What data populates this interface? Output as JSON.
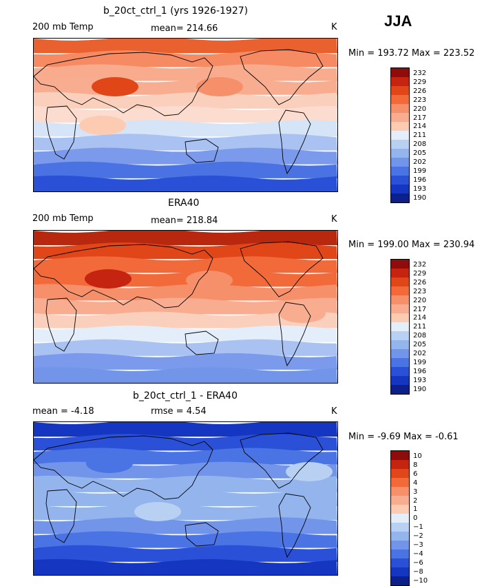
{
  "season": "JJA",
  "panels": [
    {
      "title": "b_20ct_ctrl_1 (yrs 1926-1927)",
      "left": "200 mb Temp",
      "center": "mean= 214.66",
      "units": "K",
      "minmax": "Min = 193.72 Max = 223.52",
      "levels": [
        "232",
        "229",
        "226",
        "223",
        "220",
        "217",
        "214",
        "211",
        "208",
        "205",
        "202",
        "199",
        "196",
        "193",
        "190"
      ],
      "colors": [
        "#8e0c0c",
        "#c42410",
        "#e14618",
        "#f26a3a",
        "#f6906a",
        "#f8ad90",
        "#fccbb2",
        "#e4eefa",
        "#b8d0f2",
        "#94b4ee",
        "#7295ea",
        "#4a73e4",
        "#2a50d8",
        "#1536c0",
        "#0c1f8a"
      ],
      "field": {
        "bands": [
          "#e9612f",
          "#f58a63",
          "#f8ab8d",
          "#f8ad90",
          "#fad0bd",
          "#fbdccf",
          "#d6e4f8",
          "#a9c2f1",
          "#7b9aeb",
          "#4b72e2",
          "#2a50d8"
        ],
        "blobs": [
          {
            "color": "#e14618",
            "cx": 118,
            "cy": 70
          },
          {
            "color": "#f6906a",
            "cx": 270,
            "cy": 70
          },
          {
            "color": "#fccbb2",
            "cx": 100,
            "cy": 126
          }
        ]
      }
    },
    {
      "title": "ERA40",
      "left": "200 mb Temp",
      "center": "mean= 218.84",
      "units": "K",
      "minmax": "Min = 199.00 Max = 230.94",
      "levels": [
        "232",
        "229",
        "226",
        "223",
        "220",
        "217",
        "214",
        "211",
        "208",
        "205",
        "202",
        "199",
        "196",
        "193",
        "190"
      ],
      "colors": [
        "#8e0c0c",
        "#c42410",
        "#e14618",
        "#f26a3a",
        "#f6906a",
        "#f8ad90",
        "#fccbb2",
        "#e4eefa",
        "#b8d0f2",
        "#94b4ee",
        "#7295ea",
        "#4a73e4",
        "#2a50d8",
        "#1536c0",
        "#0c1f8a"
      ],
      "field": {
        "bands": [
          "#b8280f",
          "#e14618",
          "#f26a3a",
          "#f26a3a",
          "#f6906a",
          "#f8ad90",
          "#fad0bd",
          "#e4eefa",
          "#a9c2f1",
          "#7b9aeb",
          "#7295ea"
        ],
        "blobs": [
          {
            "color": "#c42410",
            "cx": 108,
            "cy": 70
          },
          {
            "color": "#f6906a",
            "cx": 255,
            "cy": 72
          },
          {
            "color": "#f8ad90",
            "cx": 390,
            "cy": 120
          }
        ]
      }
    },
    {
      "title": "b_20ct_ctrl_1 - ERA40",
      "left": "mean =   -4.18",
      "center": "rmse =    4.54",
      "units": "K",
      "minmax": "Min =   -9.69 Max =   -0.61",
      "levels": [
        "10",
        "8",
        "6",
        "4",
        "3",
        "2",
        "1",
        "0",
        "−1",
        "−2",
        "−3",
        "−4",
        "−6",
        "−8",
        "−10"
      ],
      "colors": [
        "#8e0c0c",
        "#c42410",
        "#e14618",
        "#f26a3a",
        "#f6906a",
        "#f8ad90",
        "#fccbb2",
        "#e4eefa",
        "#b8d0f2",
        "#94b4ee",
        "#7295ea",
        "#4a73e4",
        "#2a50d8",
        "#1536c0",
        "#0c1f8a"
      ],
      "field": {
        "bands": [
          "#1536c0",
          "#2a50d8",
          "#4a73e4",
          "#7295ea",
          "#94b4ee",
          "#94b4ee",
          "#94b4ee",
          "#7295ea",
          "#4a73e4",
          "#2a50d8",
          "#1536c0"
        ],
        "blobs": [
          {
            "color": "#b8d0f2",
            "cx": 400,
            "cy": 72
          },
          {
            "color": "#b8d0f2",
            "cx": 180,
            "cy": 130
          },
          {
            "color": "#4a73e4",
            "cx": 110,
            "cy": 60
          }
        ]
      }
    }
  ]
}
